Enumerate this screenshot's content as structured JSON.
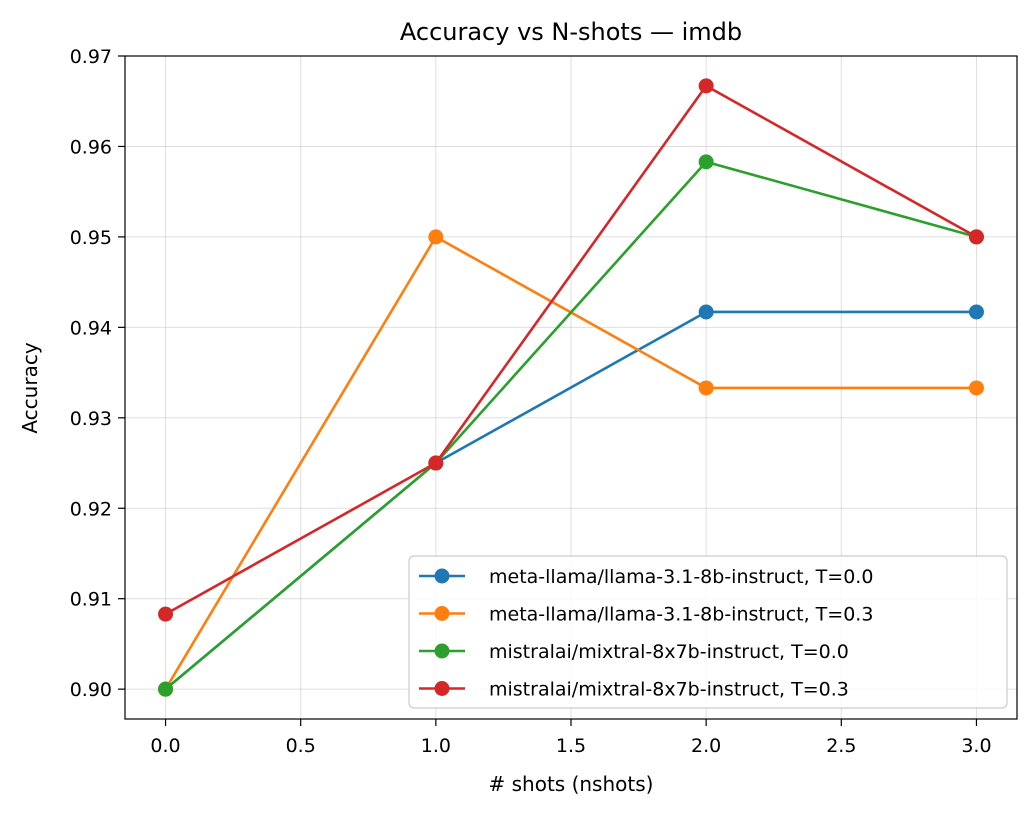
{
  "chart_data": {
    "type": "line",
    "title": "Accuracy vs N-shots — imdb",
    "xlabel": "# shots (nshots)",
    "ylabel": "Accuracy",
    "x": [
      0,
      1,
      2,
      3
    ],
    "xlim": [
      -0.15,
      3.15
    ],
    "ylim": [
      0.8967,
      0.97
    ],
    "xticks": [
      0.0,
      0.5,
      1.0,
      1.5,
      2.0,
      2.5,
      3.0
    ],
    "xtick_labels": [
      "0.0",
      "0.5",
      "1.0",
      "1.5",
      "2.0",
      "2.5",
      "3.0"
    ],
    "yticks": [
      0.9,
      0.91,
      0.92,
      0.93,
      0.94,
      0.95,
      0.96,
      0.97
    ],
    "ytick_labels": [
      "0.90",
      "0.91",
      "0.92",
      "0.93",
      "0.94",
      "0.95",
      "0.96",
      "0.97"
    ],
    "grid": true,
    "legend_position": "lower-right",
    "series": [
      {
        "name": "meta-llama/llama-3.1-8b-instruct, T=0.0",
        "color": "#1f77b4",
        "values": [
          0.9,
          0.925,
          0.9417,
          0.9417
        ]
      },
      {
        "name": "meta-llama/llama-3.1-8b-instruct, T=0.3",
        "color": "#ff7f0e",
        "values": [
          0.9,
          0.95,
          0.9333,
          0.9333
        ]
      },
      {
        "name": "mistralai/mixtral-8x7b-instruct, T=0.0",
        "color": "#2ca02c",
        "values": [
          0.9,
          0.925,
          0.9583,
          0.95
        ]
      },
      {
        "name": "mistralai/mixtral-8x7b-instruct, T=0.3",
        "color": "#d62728",
        "values": [
          0.9083,
          0.925,
          0.9667,
          0.95
        ]
      }
    ]
  }
}
